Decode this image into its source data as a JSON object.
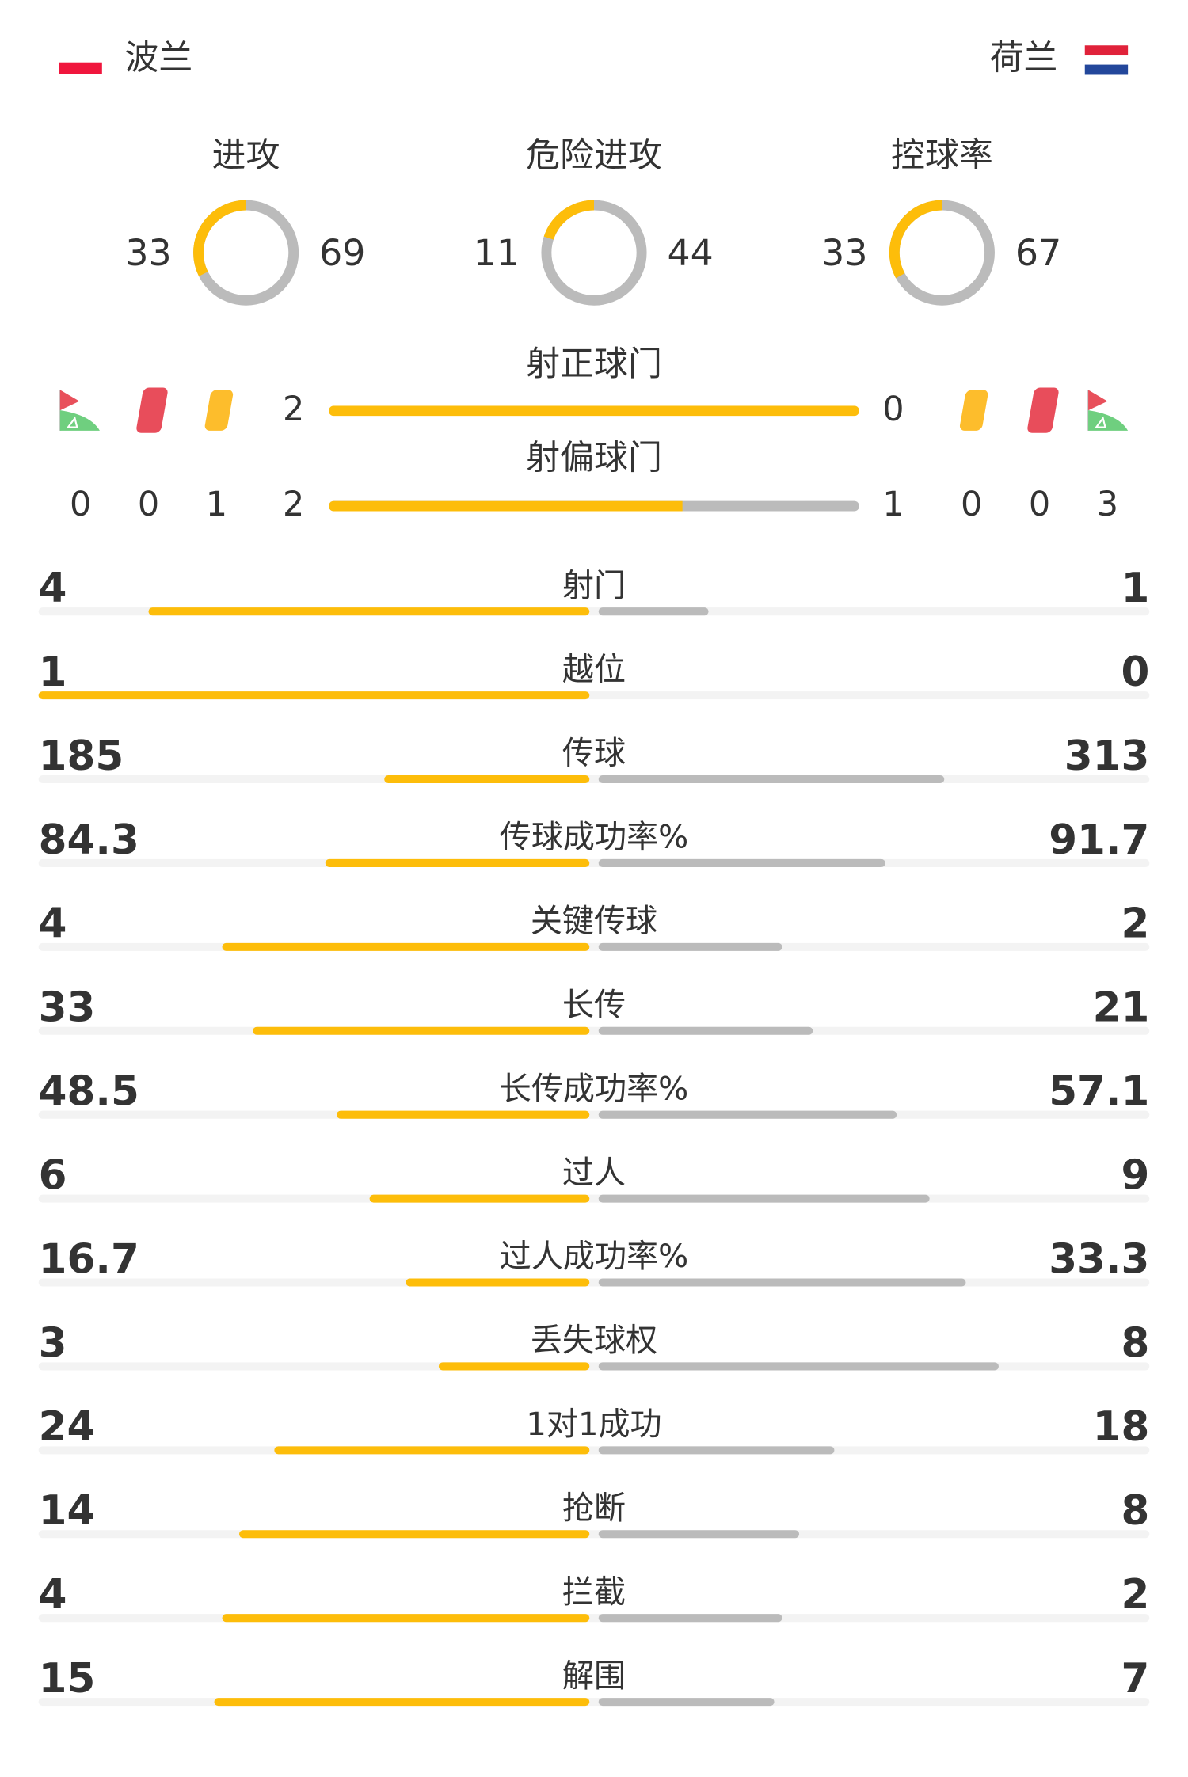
{
  "colors": {
    "home": "#fdbd0a",
    "away": "#bbbbbb",
    "track": "#f3f3f3"
  },
  "home": {
    "name": "波兰",
    "flag": "poland-flag"
  },
  "away": {
    "name": "荷兰",
    "flag": "netherlands-flag"
  },
  "circles": [
    {
      "label": "进攻",
      "home": 33,
      "away": 69
    },
    {
      "label": "危险进攻",
      "home": 11,
      "away": 44
    },
    {
      "label": "控球率",
      "home": 33,
      "away": 67
    }
  ],
  "shots_on": {
    "label": "射正球门",
    "home": 2,
    "away": 0
  },
  "shots_off": {
    "label": "射偏球门",
    "home": 2,
    "away": 1
  },
  "cards": {
    "home": {
      "corners": 0,
      "red": 0,
      "yellow": 1
    },
    "away": {
      "corners": 3,
      "red": 0,
      "yellow": 0
    }
  },
  "stats": [
    {
      "label": "射门",
      "home": "4",
      "away": "1"
    },
    {
      "label": "越位",
      "home": "1",
      "away": "0"
    },
    {
      "label": "传球",
      "home": "185",
      "away": "313"
    },
    {
      "label": "传球成功率%",
      "home": "84.3",
      "away": "91.7"
    },
    {
      "label": "关键传球",
      "home": "4",
      "away": "2"
    },
    {
      "label": "长传",
      "home": "33",
      "away": "21"
    },
    {
      "label": "长传成功率%",
      "home": "48.5",
      "away": "57.1"
    },
    {
      "label": "过人",
      "home": "6",
      "away": "9"
    },
    {
      "label": "过人成功率%",
      "home": "16.7",
      "away": "33.3"
    },
    {
      "label": "丢失球权",
      "home": "3",
      "away": "8"
    },
    {
      "label": "1对1成功",
      "home": "24",
      "away": "18"
    },
    {
      "label": "抢断",
      "home": "14",
      "away": "8"
    },
    {
      "label": "拦截",
      "home": "4",
      "away": "2"
    },
    {
      "label": "解围",
      "home": "15",
      "away": "7"
    }
  ]
}
